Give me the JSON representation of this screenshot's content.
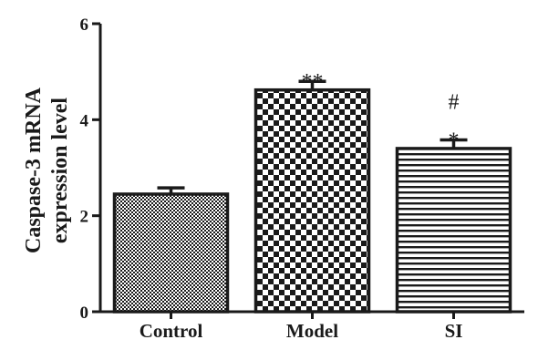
{
  "chart_data": {
    "type": "bar",
    "title": "",
    "xlabel": "",
    "ylabel": [
      "Caspase-3 mRNA",
      "expression level"
    ],
    "categories": [
      "Control",
      "Model",
      "SI"
    ],
    "values": [
      2.45,
      4.62,
      3.4
    ],
    "errors": [
      0.13,
      0.18,
      0.18
    ],
    "annotations": [
      [],
      [
        "**"
      ],
      [
        "#",
        "*"
      ]
    ],
    "ylim": [
      0,
      6
    ],
    "yticks": [
      0,
      2,
      4,
      6
    ],
    "ytick_labels": [
      "0",
      "2",
      "4",
      "6"
    ],
    "patterns": [
      "fine-checker",
      "checker",
      "horizontal-lines"
    ],
    "grid": false,
    "legend": "none"
  },
  "colors": {
    "ink": "#1a1a1a",
    "background": "#ffffff"
  }
}
